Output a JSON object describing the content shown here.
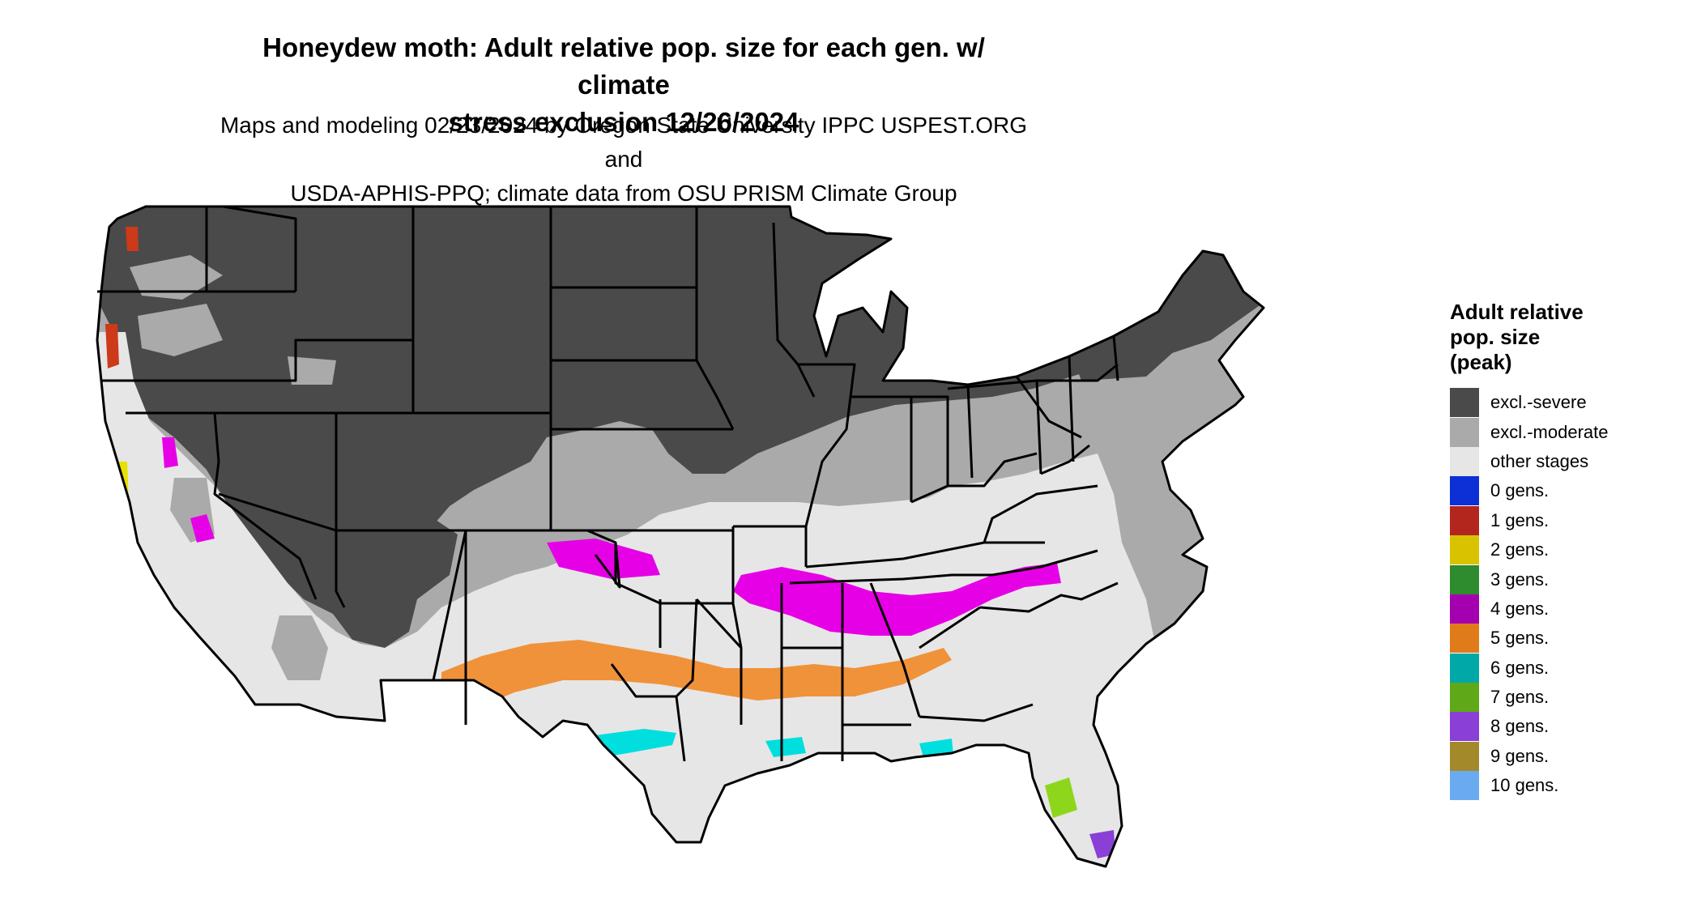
{
  "title_line1": "Honeydew moth: Adult relative pop. size for each gen. w/ climate",
  "title_line2": "stress exclusion 12/26/2024",
  "subtitle_line1": "Maps and modeling 02/23/2024 by Oregon State University IPPC USPEST.ORG and",
  "subtitle_line2": "USDA-APHIS-PPQ; climate data from OSU PRISM Climate Group",
  "legend": {
    "title_lines": [
      "Adult relative",
      "pop. size",
      "(peak)"
    ],
    "items": [
      {
        "label": "excl.-severe",
        "color": "#4a4a4a"
      },
      {
        "label": "excl.-moderate",
        "color": "#aaaaaa"
      },
      {
        "label": "other stages",
        "color": "#e6e6e6"
      },
      {
        "label": "0 gens.",
        "color": "#0c2fd6"
      },
      {
        "label": "1 gens.",
        "color": "#b3261e"
      },
      {
        "label": "2 gens.",
        "color": "#d9c300"
      },
      {
        "label": "3 gens.",
        "color": "#2e8b2e"
      },
      {
        "label": "4 gens.",
        "color": "#a400b0"
      },
      {
        "label": "5 gens.",
        "color": "#e07b1a"
      },
      {
        "label": "6 gens.",
        "color": "#00a8a8"
      },
      {
        "label": "7 gens.",
        "color": "#5fa818"
      },
      {
        "label": "8 gens.",
        "color": "#8a3fd6"
      },
      {
        "label": "9 gens.",
        "color": "#a3892a"
      },
      {
        "label": "10 gens.",
        "color": "#6aaaf0"
      }
    ]
  },
  "map_colors": {
    "severe": "#4a4a4a",
    "moderate": "#aaaaaa",
    "other": "#e6e6e6",
    "gen4": "#e600e6",
    "gen5": "#f0923a",
    "gen6": "#00dede",
    "gen7": "#8ed61c",
    "gen1": "#cc3a1a",
    "gen2": "#e8e000",
    "gen8": "#8a3fd6",
    "border": "#000000"
  }
}
